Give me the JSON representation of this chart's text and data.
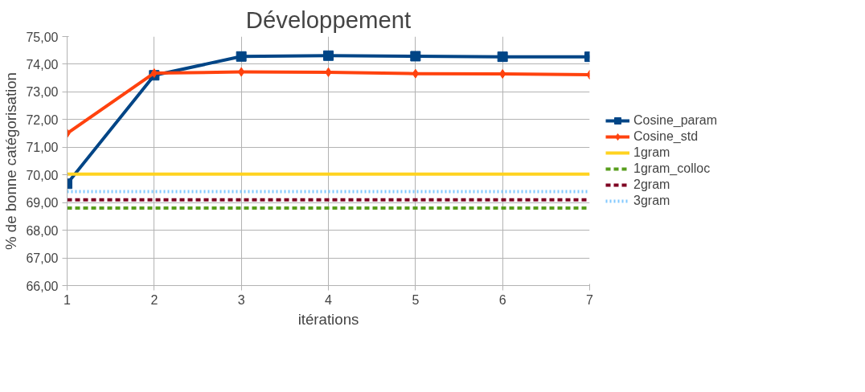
{
  "chart_data": {
    "type": "line",
    "title": "Développement",
    "xlabel": "itérations",
    "ylabel": "% de bonne catégorisation",
    "x": [
      1,
      2,
      3,
      4,
      5,
      6,
      7
    ],
    "xlim": [
      1,
      7
    ],
    "xticks": [
      1,
      2,
      3,
      4,
      5,
      6,
      7
    ],
    "ylim": [
      66,
      75
    ],
    "yticks": [
      {
        "value": 66,
        "label": "66,00"
      },
      {
        "value": 67,
        "label": "67,00"
      },
      {
        "value": 68,
        "label": "68,00"
      },
      {
        "value": 69,
        "label": "69,00"
      },
      {
        "value": 70,
        "label": "70,00"
      },
      {
        "value": 71,
        "label": "71,00"
      },
      {
        "value": 72,
        "label": "72,00"
      },
      {
        "value": 73,
        "label": "73,00"
      },
      {
        "value": 74,
        "label": "74,00"
      },
      {
        "value": 75,
        "label": "75,00"
      }
    ],
    "grid": true,
    "legend": "right",
    "series": [
      {
        "name": "Cosine_param",
        "color": "#004586",
        "marker": "square",
        "line_style": "solid",
        "values": [
          69.68,
          73.6,
          74.28,
          74.31,
          74.29,
          74.27,
          74.27
        ]
      },
      {
        "name": "Cosine_std",
        "color": "#ff420e",
        "marker": "diamond",
        "line_style": "solid",
        "values": [
          71.5,
          73.68,
          73.72,
          73.71,
          73.66,
          73.65,
          73.62
        ]
      },
      {
        "name": "1gram",
        "color": "#ffd320",
        "marker": "none",
        "line_style": "solid",
        "values": [
          70.03,
          70.03,
          70.03,
          70.03,
          70.03,
          70.03,
          70.03
        ]
      },
      {
        "name": "1gram_colloc",
        "color": "#579d1c",
        "marker": "none",
        "line_style": "dashed",
        "values": [
          68.8,
          68.8,
          68.8,
          68.8,
          68.8,
          68.8,
          68.8
        ]
      },
      {
        "name": "2gram",
        "color": "#7e0021",
        "marker": "none",
        "line_style": "dashed",
        "values": [
          69.1,
          69.1,
          69.1,
          69.1,
          69.1,
          69.1,
          69.1
        ]
      },
      {
        "name": "3gram",
        "color": "#83caff",
        "marker": "none",
        "line_style": "dotted",
        "values": [
          69.4,
          69.4,
          69.4,
          69.4,
          69.4,
          69.4,
          69.4
        ]
      }
    ]
  }
}
